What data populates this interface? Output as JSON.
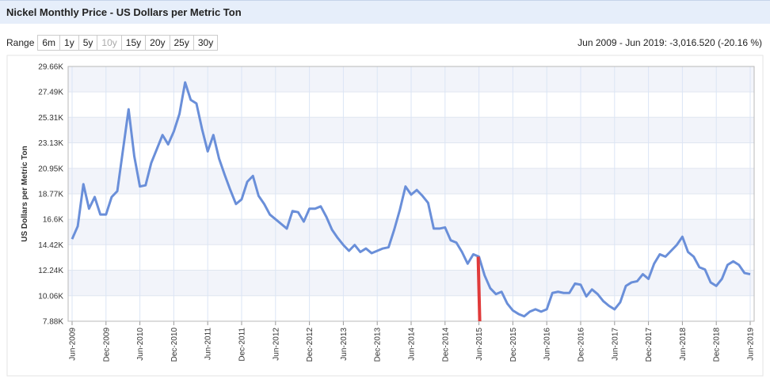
{
  "header": {
    "title": "Nickel Monthly Price - US Dollars per Metric Ton"
  },
  "controls": {
    "range_label": "Range",
    "buttons": [
      "6m",
      "1y",
      "5y",
      "10y",
      "15y",
      "20y",
      "25y",
      "30y"
    ],
    "summary": "Jun 2009 - Jun 2019: -3,016.520 (-20.16 %)"
  },
  "chart_data": {
    "type": "line",
    "y_label": "US Dollars per Metric Ton",
    "categories": [
      "Jun-2009",
      null,
      null,
      null,
      null,
      null,
      "Dec-2009",
      null,
      null,
      null,
      null,
      null,
      "Jun-2010",
      null,
      null,
      null,
      null,
      null,
      "Dec-2010",
      null,
      null,
      null,
      null,
      null,
      "Jun-2011",
      null,
      null,
      null,
      null,
      null,
      "Dec-2011",
      null,
      null,
      null,
      null,
      null,
      "Jun-2012",
      null,
      null,
      null,
      null,
      null,
      "Dec-2012",
      null,
      null,
      null,
      null,
      null,
      "Jun-2013",
      null,
      null,
      null,
      null,
      null,
      "Dec-2013",
      null,
      null,
      null,
      null,
      null,
      "Jun-2014",
      null,
      null,
      null,
      null,
      null,
      "Dec-2014",
      null,
      null,
      null,
      null,
      null,
      "Jun-2015",
      null,
      null,
      null,
      null,
      null,
      "Dec-2015",
      null,
      null,
      null,
      null,
      null,
      "Jun-2016",
      null,
      null,
      null,
      null,
      null,
      "Dec-2016",
      null,
      null,
      null,
      null,
      null,
      "Jun-2017",
      null,
      null,
      null,
      null,
      null,
      "Dec-2017",
      null,
      null,
      null,
      null,
      null,
      "Jun-2018",
      null,
      null,
      null,
      null,
      null,
      "Dec-2018",
      null,
      null,
      null,
      null,
      null,
      "Jun-2019"
    ],
    "series": [
      {
        "name": "Nickel",
        "color": "#6a8fd9",
        "values": [
          14900,
          16000,
          19600,
          17500,
          18500,
          17000,
          17000,
          18500,
          19000,
          22500,
          26000,
          22000,
          19400,
          19500,
          21400,
          22600,
          23800,
          23000,
          24100,
          25600,
          28300,
          26800,
          26500,
          24300,
          22400,
          23800,
          21800,
          20400,
          19100,
          17900,
          18300,
          19800,
          20300,
          18600,
          17900,
          17000,
          16600,
          16200,
          15800,
          17300,
          17200,
          16400,
          17500,
          17500,
          17700,
          16800,
          15700,
          15000,
          14400,
          13900,
          14400,
          13800,
          14100,
          13700,
          13900,
          14100,
          14200,
          15700,
          17400,
          19400,
          18700,
          19100,
          18600,
          18000,
          15800,
          15800,
          15900,
          14800,
          14600,
          13800,
          12800,
          13600,
          13400,
          11800,
          10700,
          10200,
          10400,
          9400,
          8800,
          8500,
          8300,
          8700,
          8900,
          8700,
          8900,
          10300,
          10400,
          10300,
          10300,
          11100,
          11000,
          10000,
          10600,
          10200,
          9600,
          9200,
          8900,
          9500,
          10900,
          11200,
          11300,
          11900,
          11500,
          12800,
          13600,
          13400,
          13900,
          14400,
          15100,
          13800,
          13400,
          12500,
          12300,
          11200,
          10900,
          11500,
          12700,
          13000,
          12700,
          12000,
          11900
        ]
      }
    ],
    "highlight_index": 72,
    "highlight_color": "#e03a3a",
    "ylim": [
      7880,
      29660
    ],
    "yticks": [
      {
        "value": 7880,
        "label": "7.88K"
      },
      {
        "value": 10060,
        "label": "10.06K"
      },
      {
        "value": 12240,
        "label": "12.24K"
      },
      {
        "value": 14420,
        "label": "14.42K"
      },
      {
        "value": 16600,
        "label": "16.6K"
      },
      {
        "value": 18770,
        "label": "18.77K"
      },
      {
        "value": 20950,
        "label": "20.95K"
      },
      {
        "value": 23130,
        "label": "23.13K"
      },
      {
        "value": 25310,
        "label": "25.31K"
      },
      {
        "value": 27490,
        "label": "27.49K"
      },
      {
        "value": 29660,
        "label": "29.66K"
      }
    ],
    "grid": true
  }
}
